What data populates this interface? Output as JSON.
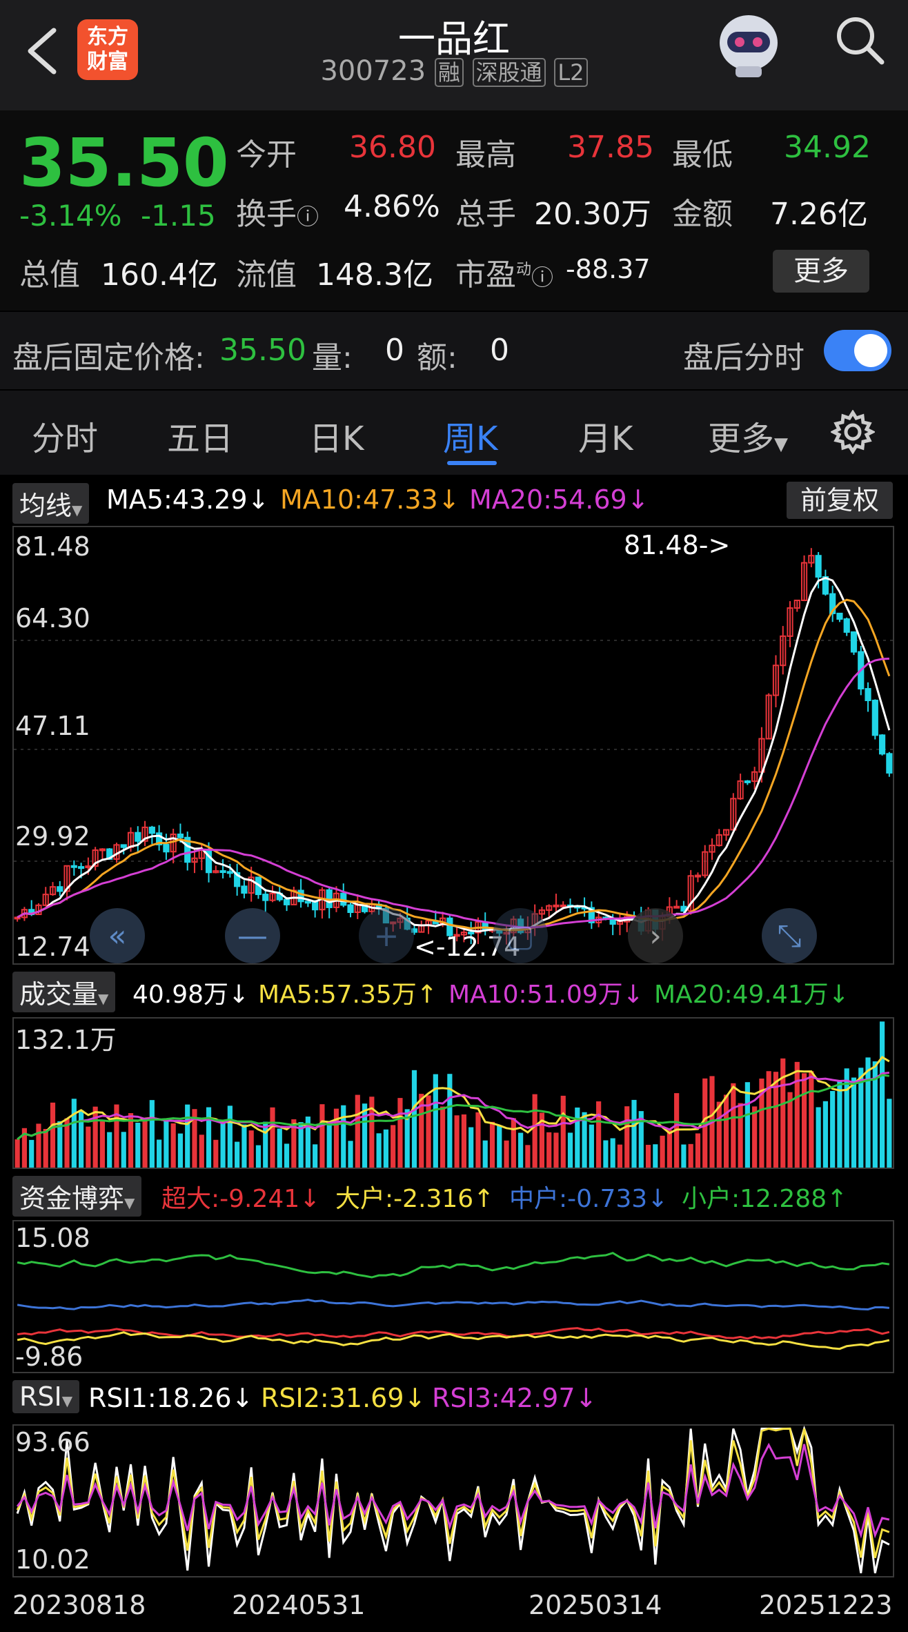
{
  "header": {
    "title": "一品红",
    "code": "300723",
    "badges": [
      "融",
      "深股通",
      "L2"
    ],
    "logo_text": [
      "东方",
      "财富"
    ]
  },
  "quote": {
    "price": "35.50",
    "change_pct": "-3.14%",
    "change": "-1.15",
    "open_label": "今开",
    "open": "36.80",
    "high_label": "最高",
    "high": "37.85",
    "low_label": "最低",
    "low": "34.92",
    "turnover_label": "换手",
    "turnover": "4.86%",
    "volume_label": "总手",
    "volume": "20.30万",
    "amount_label": "金额",
    "amount": "7.26亿",
    "mktcap_label": "总值",
    "mktcap": "160.4亿",
    "float_label": "流值",
    "float_cap": "148.3亿",
    "pe_label": "市盈",
    "pe_sup": "动",
    "pe": "-88.37",
    "more_button": "更多"
  },
  "after_hours": {
    "price_label": "盘后固定价格:",
    "price": "35.50",
    "vol_label": "量:",
    "vol": "0",
    "amt_label": "额:",
    "amt": "0",
    "toggle_label": "盘后分时",
    "toggle_on": true
  },
  "tabs": {
    "items": [
      "分时",
      "五日",
      "日K",
      "周K",
      "月K",
      "更多"
    ],
    "active": "周K"
  },
  "ma_bar": {
    "selector": "均线",
    "ma5": "MA5:43.29↓",
    "ma10": "MA10:47.33↓",
    "ma20": "MA20:54.69↓",
    "adjust_button": "前复权"
  },
  "kline": {
    "y_labels": [
      "81.48",
      "64.30",
      "47.11",
      "29.92",
      "12.74"
    ],
    "max_marker": "81.48->",
    "min_marker": "<-12.74"
  },
  "volume_bar": {
    "selector": "成交量",
    "value": "40.98万↓",
    "ma5": "MA5:57.35万↑",
    "ma10": "MA10:51.09万↓",
    "ma20": "MA20:49.41万↓",
    "y_label": "132.1万"
  },
  "fund_bar": {
    "selector": "资金博弈",
    "super": "超大:-9.241↓",
    "large": "大户:-2.316↑",
    "medium": "中户:-0.733↓",
    "small": "小户:12.288↑",
    "y_top": "15.08",
    "y_bottom": "-9.86"
  },
  "rsi_bar": {
    "selector": "RSI",
    "rsi1": "RSI1:18.26↓",
    "rsi2": "RSI2:31.69↓",
    "rsi3": "RSI3:42.97↓",
    "y_top": "93.66",
    "y_bottom": "10.02"
  },
  "x_axis": [
    "20230818",
    "20240531",
    "20250314",
    "20251223"
  ],
  "colors": {
    "up": "#e8343a",
    "down": "#21d4e6",
    "accent": "#3a82f6",
    "ma5": "#ffffff",
    "ma10": "#f5a623",
    "ma20": "#d43fd4",
    "green": "#2ec040",
    "yellow": "#f5e042",
    "blue": "#3d74d8"
  }
}
